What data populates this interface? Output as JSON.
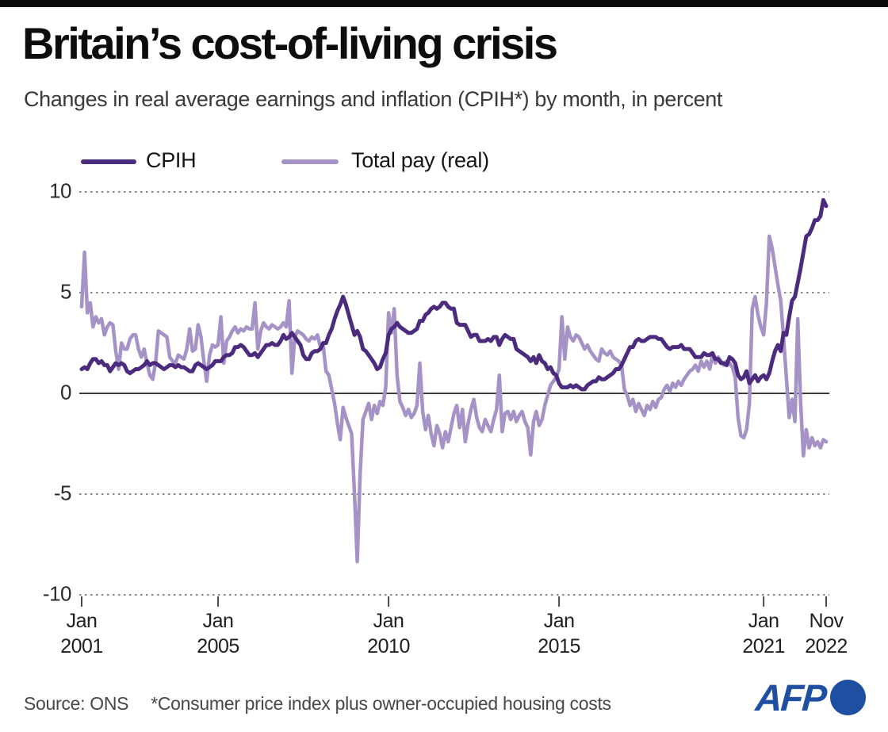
{
  "header": {
    "title": "Britain’s cost-of-living crisis",
    "subtitle": "Changes in real average earnings and inflation (CPIH*) by month, in percent"
  },
  "legend": {
    "items": [
      {
        "label": "CPIH",
        "color": "#4c2b7f"
      },
      {
        "label": "Total pay (real)",
        "color": "#a592c7"
      }
    ],
    "position": "top-left"
  },
  "footer": {
    "source": "Source: ONS",
    "note": "*Consumer price index plus owner-occupied housing costs",
    "logo_text": "AFP"
  },
  "colors": {
    "cpih_line": "#4c2b7f",
    "total_pay_line": "#a592c7",
    "gridline": "#8a8a8a",
    "zero_line": "#3d3d3d",
    "accent_logo_blue": "#1e4fa1",
    "top_bar": "#0a0a0a"
  },
  "chart_data": {
    "type": "line",
    "title": "Britain’s cost-of-living crisis",
    "subtitle": "Changes in real average earnings and inflation (CPIH*) by month, in percent",
    "xlabel": "",
    "ylabel": "percent",
    "x_unit": "month",
    "x_start": "Jan 2001",
    "x_end": "Nov 2022",
    "ylim": [
      -10,
      10
    ],
    "grid": "dotted horizontal at 10, 5, -5, -10; solid zero line",
    "legend_position": "top-left",
    "y_ticks": [
      "10",
      "5",
      "0",
      "-5",
      "-10"
    ],
    "y_tick_values": [
      10,
      5,
      0,
      -5,
      -10
    ],
    "x_ticks": [
      {
        "m": 0,
        "line1": "Jan",
        "line2": "2001"
      },
      {
        "m": 48,
        "line1": "Jan",
        "line2": "2005"
      },
      {
        "m": 108,
        "line1": "Jan",
        "line2": "2010"
      },
      {
        "m": 168,
        "line1": "Jan",
        "line2": "2015"
      },
      {
        "m": 240,
        "line1": "Jan",
        "line2": "2021"
      },
      {
        "m": 262,
        "line1": "Nov",
        "line2": "2022"
      }
    ],
    "series": [
      {
        "name": "Total pay (real)",
        "color": "#a592c7",
        "values": [
          4.3,
          7.0,
          4.0,
          4.5,
          3.3,
          3.8,
          3.5,
          3.7,
          2.9,
          3.3,
          3.5,
          3.4,
          2.1,
          1.2,
          2.5,
          2.2,
          2.2,
          2.7,
          2.9,
          2.9,
          2.2,
          1.8,
          2.2,
          1.5,
          0.9,
          0.7,
          1.5,
          3.1,
          3.0,
          2.9,
          2.8,
          1.8,
          1.6,
          1.5,
          1.9,
          1.8,
          1.7,
          2.2,
          3.2,
          2.1,
          2.2,
          3.4,
          2.8,
          1.6,
          0.6,
          1.9,
          2.4,
          2.3,
          2.4,
          3.8,
          1.5,
          2.6,
          2.8,
          3.1,
          3.3,
          3.0,
          3.2,
          3.1,
          3.3,
          3.2,
          3.2,
          4.5,
          2.2,
          3.1,
          3.5,
          3.3,
          3.2,
          3.4,
          3.3,
          3.2,
          3.3,
          3.5,
          3.3,
          4.6,
          1.0,
          2.8,
          3.1,
          3.0,
          2.9,
          2.7,
          2.6,
          2.8,
          2.7,
          2.9,
          2.3,
          2.4,
          1.1,
          0.9,
          0.2,
          -0.5,
          -1.5,
          -2.3,
          -0.7,
          -1.2,
          -1.6,
          -2.0,
          -5.0,
          -8.35,
          -4.0,
          -1.3,
          -0.9,
          -0.5,
          -1.3,
          -0.6,
          -1.0,
          -0.4,
          -0.6,
          0.3,
          4.0,
          3.0,
          4.2,
          0.9,
          -0.4,
          -0.7,
          -1.1,
          -0.8,
          -1.2,
          -1.0,
          -0.6,
          1.5,
          -0.9,
          -1.8,
          -1.1,
          -2.0,
          -2.6,
          -1.6,
          -2.0,
          -2.7,
          -1.9,
          -2.4,
          -1.7,
          -1.0,
          -0.6,
          -1.7,
          -0.8,
          -2.4,
          -1.5,
          -0.8,
          -0.3,
          -1.2,
          -1.7,
          -1.9,
          -1.3,
          -1.6,
          -1.9,
          -1.3,
          -0.8,
          0.9,
          -1.9,
          -1.0,
          -0.9,
          -1.3,
          -0.9,
          -1.4,
          -1.1,
          -0.9,
          -1.4,
          -1.7,
          -3.05,
          -1.4,
          -0.9,
          -1.6,
          -1.3,
          -0.6,
          -0.1,
          0.4,
          0.6,
          0.8,
          1.2,
          3.8,
          1.7,
          3.3,
          2.8,
          2.6,
          2.9,
          2.8,
          2.5,
          2.2,
          2.4,
          2.1,
          1.9,
          1.7,
          1.6,
          2.2,
          2.0,
          1.9,
          2.1,
          1.8,
          1.7,
          1.6,
          1.4,
          0.2,
          -0.1,
          -0.6,
          -0.3,
          -0.9,
          -0.5,
          -0.8,
          -1.1,
          -0.6,
          -0.8,
          -0.4,
          -0.7,
          -0.3,
          -0.2,
          0.2,
          0.4,
          0.1,
          0.5,
          0.3,
          0.6,
          0.4,
          0.7,
          0.9,
          1.1,
          1.2,
          1.4,
          1.1,
          1.6,
          1.3,
          1.6,
          1.2,
          1.9,
          1.5,
          1.8,
          1.6,
          1.4,
          1.6,
          1.5,
          1.3,
          0.8,
          -1.2,
          -2.1,
          -2.2,
          -1.8,
          -0.5,
          4.2,
          4.8,
          3.9,
          3.3,
          2.9,
          4.5,
          7.8,
          7.2,
          6.3,
          5.4,
          4.6,
          2.8,
          0.8,
          -1.2,
          -0.3,
          -1.4,
          3.7,
          -0.4,
          -3.1,
          -1.8,
          -2.7,
          -2.2,
          -2.6,
          -2.4,
          -2.7,
          -2.3,
          -2.4
        ]
      },
      {
        "name": "CPIH",
        "color": "#4c2b7f",
        "values": [
          1.2,
          1.3,
          1.2,
          1.5,
          1.7,
          1.7,
          1.5,
          1.6,
          1.4,
          1.4,
          1.1,
          1.3,
          1.5,
          1.4,
          1.5,
          1.4,
          1.1,
          1.0,
          1.1,
          1.2,
          1.2,
          1.3,
          1.4,
          1.6,
          1.4,
          1.5,
          1.5,
          1.4,
          1.3,
          1.2,
          1.3,
          1.4,
          1.4,
          1.3,
          1.4,
          1.3,
          1.3,
          1.2,
          1.1,
          1.1,
          1.4,
          1.5,
          1.4,
          1.3,
          1.2,
          1.3,
          1.4,
          1.6,
          1.6,
          1.6,
          1.8,
          1.9,
          1.9,
          2.0,
          2.3,
          2.3,
          2.4,
          2.3,
          2.1,
          1.9,
          1.9,
          2.0,
          1.8,
          2.0,
          2.2,
          2.4,
          2.4,
          2.5,
          2.4,
          2.4,
          2.6,
          2.9,
          2.7,
          2.8,
          3.0,
          2.8,
          2.6,
          2.4,
          1.9,
          1.7,
          1.7,
          2.0,
          2.1,
          2.1,
          2.2,
          2.5,
          2.5,
          2.9,
          3.2,
          3.7,
          4.1,
          4.4,
          4.8,
          4.4,
          3.9,
          3.4,
          2.9,
          3.1,
          2.8,
          2.2,
          2.1,
          1.9,
          1.7,
          1.5,
          1.2,
          1.3,
          1.7,
          2.0,
          2.9,
          3.2,
          3.3,
          3.5,
          3.3,
          3.2,
          3.1,
          3.0,
          3.0,
          3.1,
          3.2,
          3.6,
          3.6,
          3.9,
          4.0,
          4.2,
          4.3,
          4.2,
          4.3,
          4.5,
          4.5,
          4.3,
          4.2,
          4.2,
          3.5,
          3.4,
          3.4,
          3.4,
          3.1,
          2.8,
          2.9,
          2.9,
          2.6,
          2.6,
          2.6,
          2.7,
          2.6,
          2.8,
          2.8,
          2.4,
          2.7,
          2.9,
          2.8,
          2.7,
          2.7,
          2.2,
          2.1,
          2.0,
          1.9,
          1.8,
          1.6,
          1.8,
          1.5,
          1.9,
          1.6,
          1.5,
          1.2,
          1.3,
          1.0,
          0.9,
          0.5,
          0.3,
          0.3,
          0.3,
          0.4,
          0.3,
          0.4,
          0.3,
          0.2,
          0.2,
          0.4,
          0.5,
          0.6,
          0.6,
          0.8,
          0.7,
          0.7,
          0.8,
          0.9,
          1.0,
          1.2,
          1.2,
          1.4,
          1.7,
          2.0,
          2.3,
          2.3,
          2.6,
          2.7,
          2.6,
          2.6,
          2.7,
          2.8,
          2.8,
          2.8,
          2.7,
          2.7,
          2.5,
          2.3,
          2.2,
          2.3,
          2.3,
          2.3,
          2.4,
          2.2,
          2.2,
          2.2,
          2.0,
          1.8,
          1.8,
          1.8,
          2.0,
          1.9,
          1.9,
          2.0,
          1.7,
          1.7,
          1.5,
          1.5,
          1.4,
          1.8,
          1.7,
          1.5,
          0.9,
          0.7,
          0.8,
          1.1,
          0.5,
          0.7,
          0.9,
          0.6,
          0.8,
          0.9,
          0.7,
          1.0,
          1.6,
          2.1,
          2.4,
          2.1,
          3.0,
          2.9,
          3.8,
          4.6,
          4.8,
          5.5,
          6.2,
          7.0,
          7.8,
          7.9,
          8.2,
          8.6,
          8.6,
          8.8,
          9.6,
          9.3
        ]
      }
    ]
  }
}
